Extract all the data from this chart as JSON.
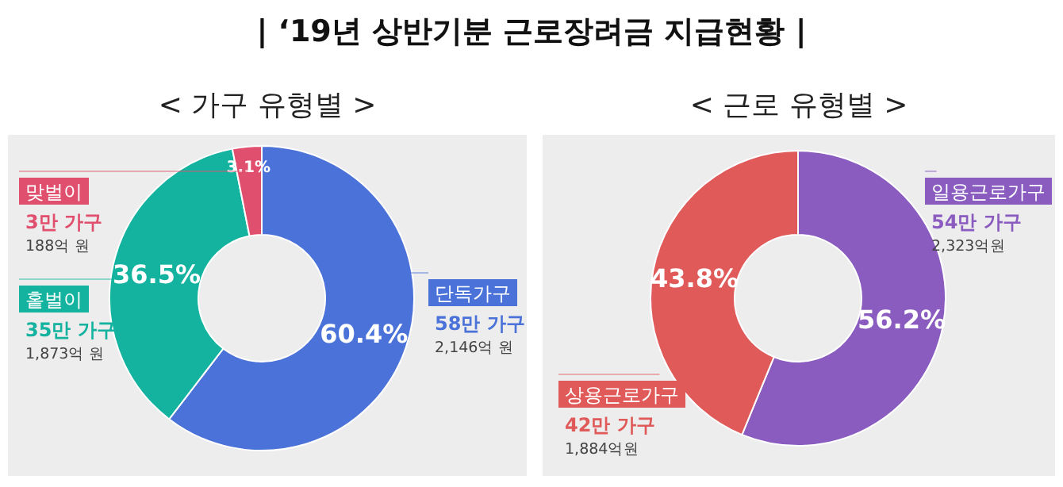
{
  "chart_data": [
    {
      "type": "donut",
      "title": "| ‘19년 상반기분 근로장려금 지급현황 |",
      "subtitle": "< 가구 유형별 >",
      "categories": [
        "단독가구",
        "홑벌이",
        "맞벌이"
      ],
      "values": [
        60.4,
        36.5,
        3.1
      ],
      "colors": [
        "#4a72d8",
        "#14b3a0",
        "#e0506e"
      ],
      "value_labels": [
        "60.4%",
        "36.5%",
        "3.1%"
      ],
      "annotations": [
        "58만 가구",
        "2,146억 원",
        "35만 가구",
        "1,873억 원",
        "3만 가구",
        "188억 원"
      ]
    },
    {
      "type": "donut",
      "subtitle": "< 근로 유형별 >",
      "categories": [
        "일용근로가구",
        "상용근로가구"
      ],
      "values": [
        56.2,
        43.8
      ],
      "colors": [
        "#8a5cc0",
        "#e05a5a"
      ],
      "value_labels": [
        "56.2%",
        "43.8%"
      ],
      "annotations": [
        "54만 가구",
        "2,323억원",
        "42만 가구",
        "1,884억원"
      ]
    }
  ]
}
